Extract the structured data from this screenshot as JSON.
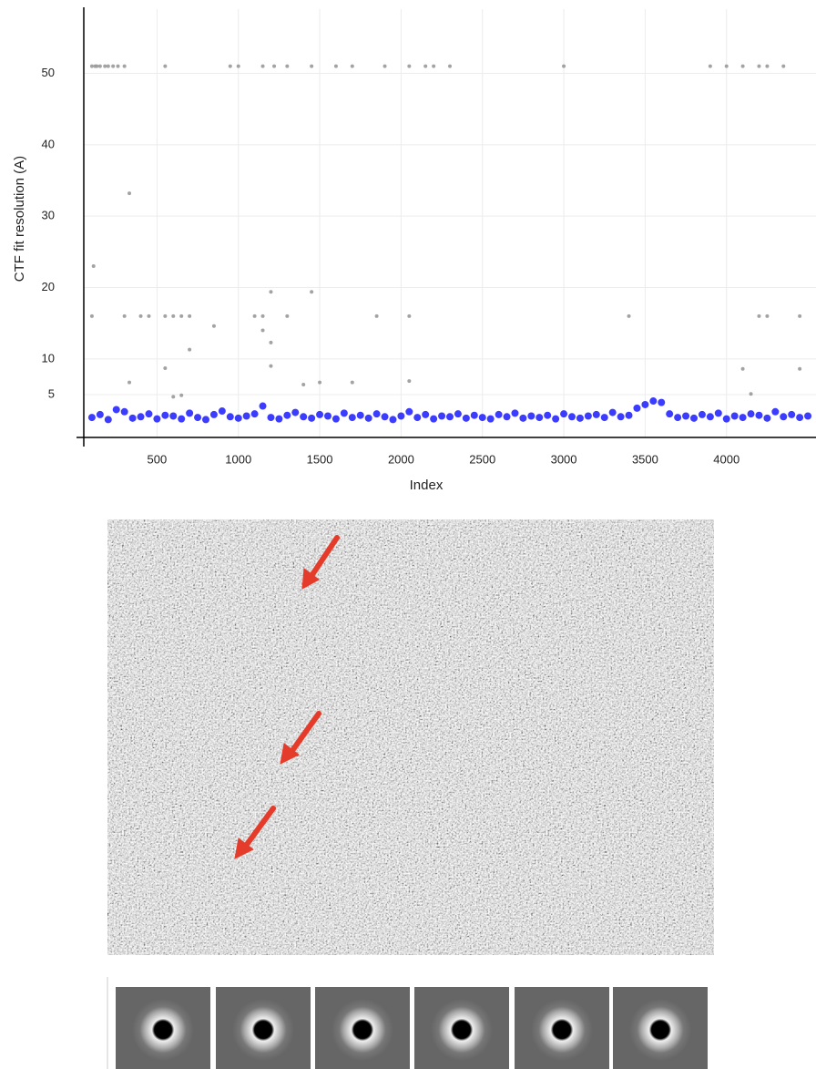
{
  "chart_data": {
    "type": "scatter",
    "xlabel": "Index",
    "ylabel": "CTF fit resolution (A)",
    "xlim": [
      50,
      4550
    ],
    "ylim": [
      -1,
      59
    ],
    "xticks": [
      500,
      1000,
      1500,
      2000,
      2500,
      3000,
      3500,
      4000
    ],
    "yticks": [
      5,
      10,
      20,
      30,
      40,
      50
    ],
    "grid": true,
    "series": [
      {
        "color": "#999999",
        "x": [
          100,
          120,
          130,
          150,
          180,
          200,
          230,
          260,
          300,
          550,
          950,
          1000,
          1150,
          1220,
          1300,
          1450,
          1600,
          1700,
          1900,
          2050,
          2150,
          2200,
          2300,
          3000,
          3900,
          4000,
          4100,
          4200,
          4250,
          4350,
          100,
          300,
          400,
          450,
          550,
          600,
          650,
          700,
          1100,
          1150,
          1300,
          1850,
          2050,
          3400,
          4200,
          4250,
          4450,
          330,
          110,
          1200,
          1450,
          850,
          1150,
          1200,
          700,
          550,
          1200,
          4100,
          4450,
          330,
          1400,
          1500,
          1700,
          2050,
          4150,
          600,
          650
        ],
        "values": [
          51,
          51,
          51,
          51,
          51,
          51,
          51,
          51,
          51,
          51,
          51,
          51,
          51,
          51,
          51,
          51,
          51,
          51,
          51,
          51,
          51,
          51,
          51,
          51,
          51,
          51,
          51,
          51,
          51,
          51,
          16,
          16,
          16,
          16,
          16,
          16,
          16,
          16,
          16,
          16,
          16,
          16,
          16,
          16,
          16,
          16,
          16,
          33.2,
          23,
          19.4,
          19.4,
          14.6,
          14,
          12.3,
          11.3,
          8.7,
          9,
          8.6,
          8.6,
          6.7,
          6.4,
          6.7,
          6.7,
          6.9,
          5.1,
          4.7,
          4.9
        ]
      },
      {
        "color": "#1a1aff",
        "x": [
          100,
          150,
          200,
          250,
          300,
          350,
          400,
          450,
          500,
          550,
          600,
          650,
          700,
          750,
          800,
          850,
          900,
          950,
          1000,
          1050,
          1100,
          1150,
          1200,
          1250,
          1300,
          1350,
          1400,
          1450,
          1500,
          1550,
          1600,
          1650,
          1700,
          1750,
          1800,
          1850,
          1900,
          1950,
          2000,
          2050,
          2100,
          2150,
          2200,
          2250,
          2300,
          2350,
          2400,
          2450,
          2500,
          2550,
          2600,
          2650,
          2700,
          2750,
          2800,
          2850,
          2900,
          2950,
          3000,
          3050,
          3100,
          3150,
          3200,
          3250,
          3300,
          3350,
          3400,
          3450,
          3500,
          3550,
          3600,
          3650,
          3700,
          3750,
          3800,
          3850,
          3900,
          3950,
          4000,
          4050,
          4100,
          4150,
          4200,
          4250,
          4300,
          4350,
          4400,
          4450,
          4500
        ],
        "values": [
          1.8,
          2.2,
          1.5,
          2.9,
          2.6,
          1.7,
          1.9,
          2.3,
          1.6,
          2.1,
          2.0,
          1.6,
          2.4,
          1.8,
          1.5,
          2.2,
          2.7,
          1.9,
          1.7,
          2.0,
          2.3,
          3.4,
          1.8,
          1.6,
          2.1,
          2.5,
          1.9,
          1.7,
          2.2,
          2.0,
          1.6,
          2.4,
          1.8,
          2.1,
          1.7,
          2.3,
          1.9,
          1.5,
          2.0,
          2.6,
          1.8,
          2.2,
          1.6,
          2.0,
          1.9,
          2.3,
          1.7,
          2.1,
          1.8,
          1.6,
          2.2,
          1.9,
          2.4,
          1.7,
          2.0,
          1.8,
          2.1,
          1.6,
          2.3,
          1.9,
          1.7,
          2.0,
          2.2,
          1.8,
          2.5,
          1.9,
          2.1,
          3.1,
          3.6,
          4.1,
          3.9,
          2.3,
          1.8,
          2.0,
          1.7,
          2.2,
          1.9,
          2.4,
          1.6,
          2.0,
          1.8,
          2.3,
          2.1,
          1.7,
          2.6,
          1.9,
          2.2,
          1.8,
          2.0
        ]
      }
    ]
  }
}
